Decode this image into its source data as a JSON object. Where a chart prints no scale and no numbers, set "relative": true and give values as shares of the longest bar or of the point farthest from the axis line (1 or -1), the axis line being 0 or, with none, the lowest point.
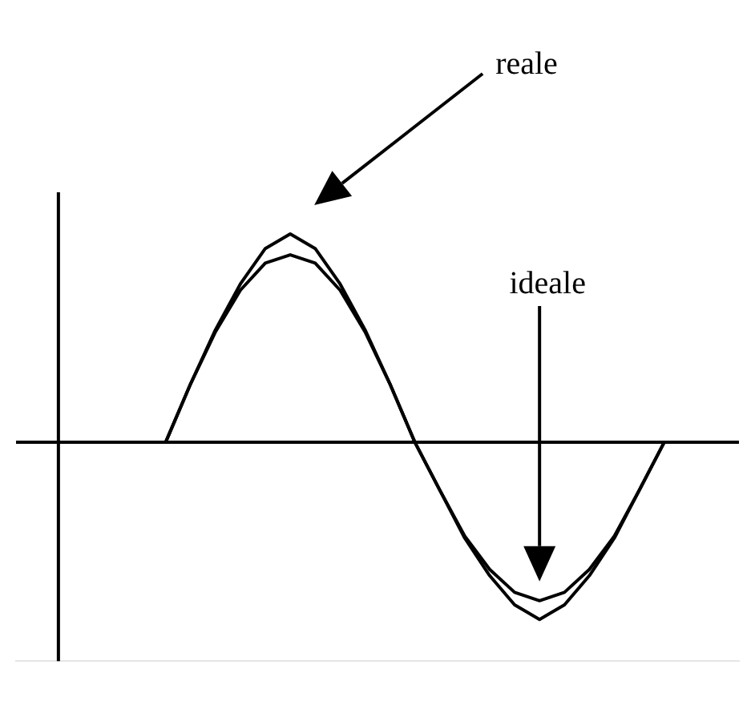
{
  "chart_data": {
    "type": "line",
    "relative": true,
    "legend": false,
    "marker": "none",
    "line_style": "solid",
    "annotations": [
      "reale",
      "ideale"
    ],
    "categories": [
      null,
      null,
      null,
      null,
      null,
      null,
      null,
      null,
      null,
      null,
      null,
      null,
      null,
      null,
      null,
      null,
      null,
      null,
      null,
      null,
      null,
      null,
      null,
      null,
      null,
      null,
      null,
      null,
      null,
      null
    ],
    "series": [
      {
        "color": "#000000",
        "values": [
          null,
          null,
          null,
          null,
          null,
          null,
          0,
          0.28,
          0.54,
          0.76,
          0.93,
          1,
          0.93,
          0.76,
          0.54,
          0.28,
          0,
          -0.23,
          -0.46,
          -0.64,
          -0.78,
          -0.85,
          -0.78,
          -0.64,
          -0.46,
          -0.23,
          0,
          null,
          null,
          null
        ]
      },
      {
        "color": "#000000",
        "values": [
          null,
          null,
          null,
          null,
          null,
          null,
          0,
          0.28,
          0.53,
          0.73,
          0.86,
          0.9,
          0.86,
          0.73,
          0.53,
          0.28,
          0,
          -0.23,
          -0.45,
          -0.61,
          -0.72,
          -0.76,
          -0.72,
          -0.61,
          -0.45,
          -0.23,
          0,
          null,
          null,
          null
        ]
      }
    ]
  }
}
